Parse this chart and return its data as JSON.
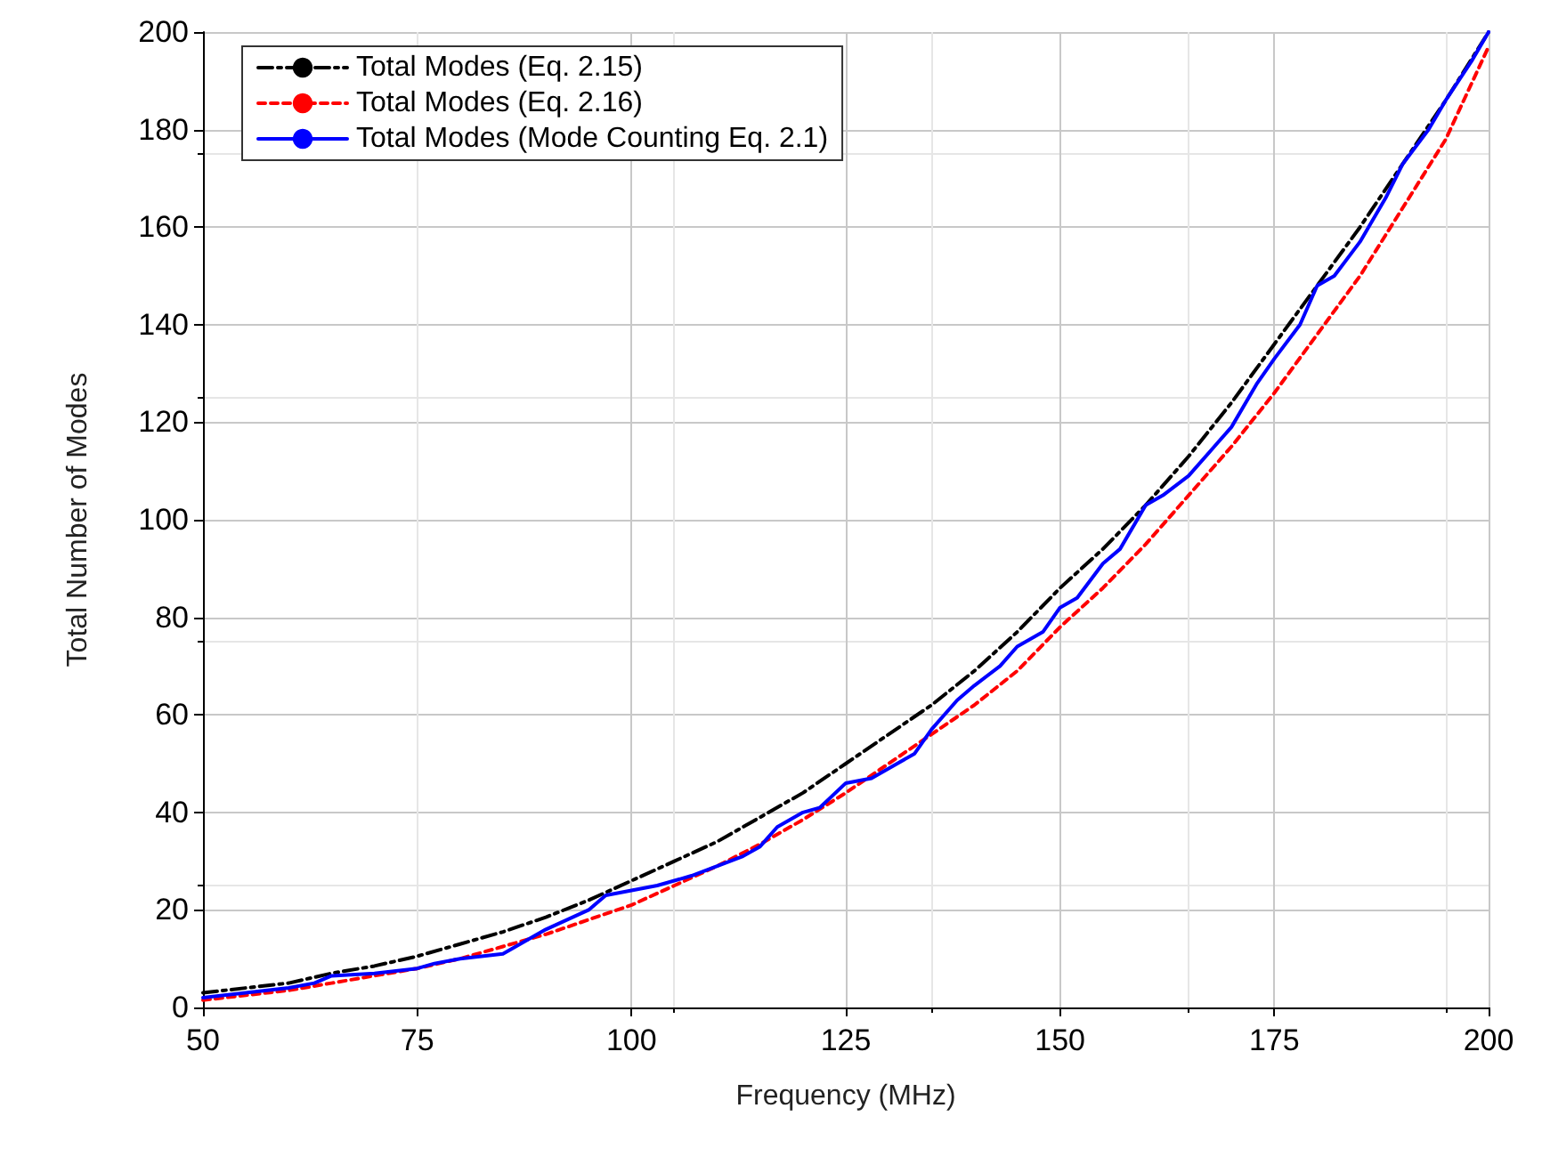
{
  "chart_data": {
    "type": "line",
    "xlabel": "Frequency (MHz)",
    "ylabel": "Total Number of Modes",
    "xlim": [
      50,
      200
    ],
    "xticks": [
      50,
      75,
      100,
      125,
      150,
      175,
      200
    ],
    "ylim": [
      0,
      200
    ],
    "yticks": [
      0,
      20,
      40,
      60,
      80,
      100,
      120,
      140,
      160,
      180,
      200
    ],
    "grid": true,
    "legend": "top left",
    "series": [
      {
        "name": "Total Modes (Eq. 2.15)",
        "color": "#000000",
        "line_style": "dashdot",
        "x": [
          50,
          55,
          60,
          65,
          70,
          75,
          80,
          85,
          90,
          95,
          100,
          105,
          110,
          115,
          120,
          125,
          130,
          135,
          140,
          145,
          150,
          155,
          160,
          165,
          170,
          175,
          180,
          185,
          190,
          195,
          200
        ],
        "values": [
          3,
          4,
          5,
          7,
          8.5,
          10.5,
          13,
          15.5,
          18.5,
          22,
          26,
          30,
          34,
          39,
          44,
          50,
          56,
          62,
          69,
          77,
          86,
          94,
          103,
          113,
          124,
          136,
          148,
          160,
          173,
          186,
          200
        ]
      },
      {
        "name": "Total Modes (Eq. 2.16)",
        "color": "#ff0000",
        "line_style": "dashed",
        "x": [
          50,
          55,
          60,
          65,
          70,
          75,
          80,
          85,
          90,
          95,
          100,
          105,
          110,
          115,
          120,
          125,
          130,
          135,
          140,
          145,
          150,
          155,
          160,
          165,
          170,
          175,
          180,
          185,
          190,
          195,
          200
        ],
        "values": [
          1.5,
          2.5,
          3.5,
          5,
          6.5,
          8,
          10,
          12.5,
          15,
          18,
          21,
          25,
          29,
          33.5,
          38.5,
          44,
          50,
          56,
          62,
          69,
          78,
          86,
          95,
          105,
          115,
          126,
          138,
          150,
          164,
          178,
          197
        ]
      },
      {
        "name": "Total Modes (Mode Counting Eq. 2.1)",
        "color": "#0000ff",
        "line_style": "solid",
        "x": [
          50,
          55,
          60,
          63,
          65,
          70,
          75,
          77,
          80,
          85,
          88,
          90,
          95,
          97,
          100,
          103,
          107,
          110,
          113,
          115,
          117,
          120,
          122,
          125,
          128,
          130,
          133,
          135,
          138,
          140,
          143,
          145,
          148,
          150,
          152,
          155,
          157,
          160,
          162,
          165,
          168,
          170,
          173,
          175,
          178,
          180,
          182,
          185,
          188,
          190,
          193,
          195,
          198,
          200
        ],
        "values": [
          2,
          3,
          4,
          5,
          6.5,
          7,
          8,
          9,
          10,
          11,
          14,
          16,
          20,
          23,
          24,
          25,
          27,
          29,
          31,
          33,
          37,
          40,
          41,
          46,
          47,
          49,
          52,
          57,
          63,
          66,
          70,
          74,
          77,
          82,
          84,
          91,
          94,
          103,
          105,
          109,
          115,
          119,
          128,
          133,
          140,
          148,
          150,
          157,
          166,
          173,
          180,
          186,
          194,
          200
        ]
      }
    ]
  }
}
